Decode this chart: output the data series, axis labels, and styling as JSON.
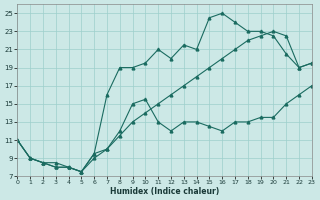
{
  "xlabel": "Humidex (Indice chaleur)",
  "bg_color": "#cce8e6",
  "grid_color": "#9ecfcc",
  "line_color": "#1a6b60",
  "xlim": [
    0,
    23
  ],
  "ylim": [
    7,
    26
  ],
  "yticks": [
    7,
    9,
    11,
    13,
    15,
    17,
    19,
    21,
    23,
    25
  ],
  "xticks": [
    0,
    1,
    2,
    3,
    4,
    5,
    6,
    7,
    8,
    9,
    10,
    11,
    12,
    13,
    14,
    15,
    16,
    17,
    18,
    19,
    20,
    21,
    22,
    23
  ],
  "line1_x": [
    0,
    1,
    2,
    3,
    4,
    5,
    6,
    7,
    8,
    9,
    10,
    11,
    12,
    13,
    14,
    15,
    16,
    17,
    18,
    19,
    20,
    21,
    22,
    23
  ],
  "line1_y": [
    11,
    9,
    8.5,
    8.5,
    8,
    7.5,
    9.5,
    16,
    19,
    19,
    19.5,
    21,
    20,
    21.5,
    21,
    24.5,
    25,
    24,
    23,
    23,
    22.5,
    20.5,
    19,
    19.5
  ],
  "line2_x": [
    0,
    1,
    2,
    3,
    4,
    5,
    6,
    7,
    8,
    9,
    10,
    11,
    12,
    13,
    14,
    15,
    16,
    17,
    18,
    19,
    20,
    21,
    22,
    23
  ],
  "line2_y": [
    11,
    9,
    8.5,
    8,
    8,
    7.5,
    9.5,
    10,
    12,
    15,
    15.5,
    13,
    12,
    13,
    13,
    12.5,
    12,
    13,
    13,
    13.5,
    13.5,
    15,
    16,
    17
  ],
  "line3_x": [
    0,
    1,
    2,
    3,
    4,
    5,
    6,
    7,
    8,
    9,
    10,
    11,
    12,
    13,
    14,
    15,
    16,
    17,
    18,
    19,
    20,
    21,
    22,
    23
  ],
  "line3_y": [
    11,
    9,
    8.5,
    8,
    8,
    7.5,
    9,
    10,
    11.5,
    13,
    14,
    15,
    16,
    17,
    18,
    19,
    20,
    21,
    22,
    22.5,
    23,
    22.5,
    19,
    19.5
  ]
}
